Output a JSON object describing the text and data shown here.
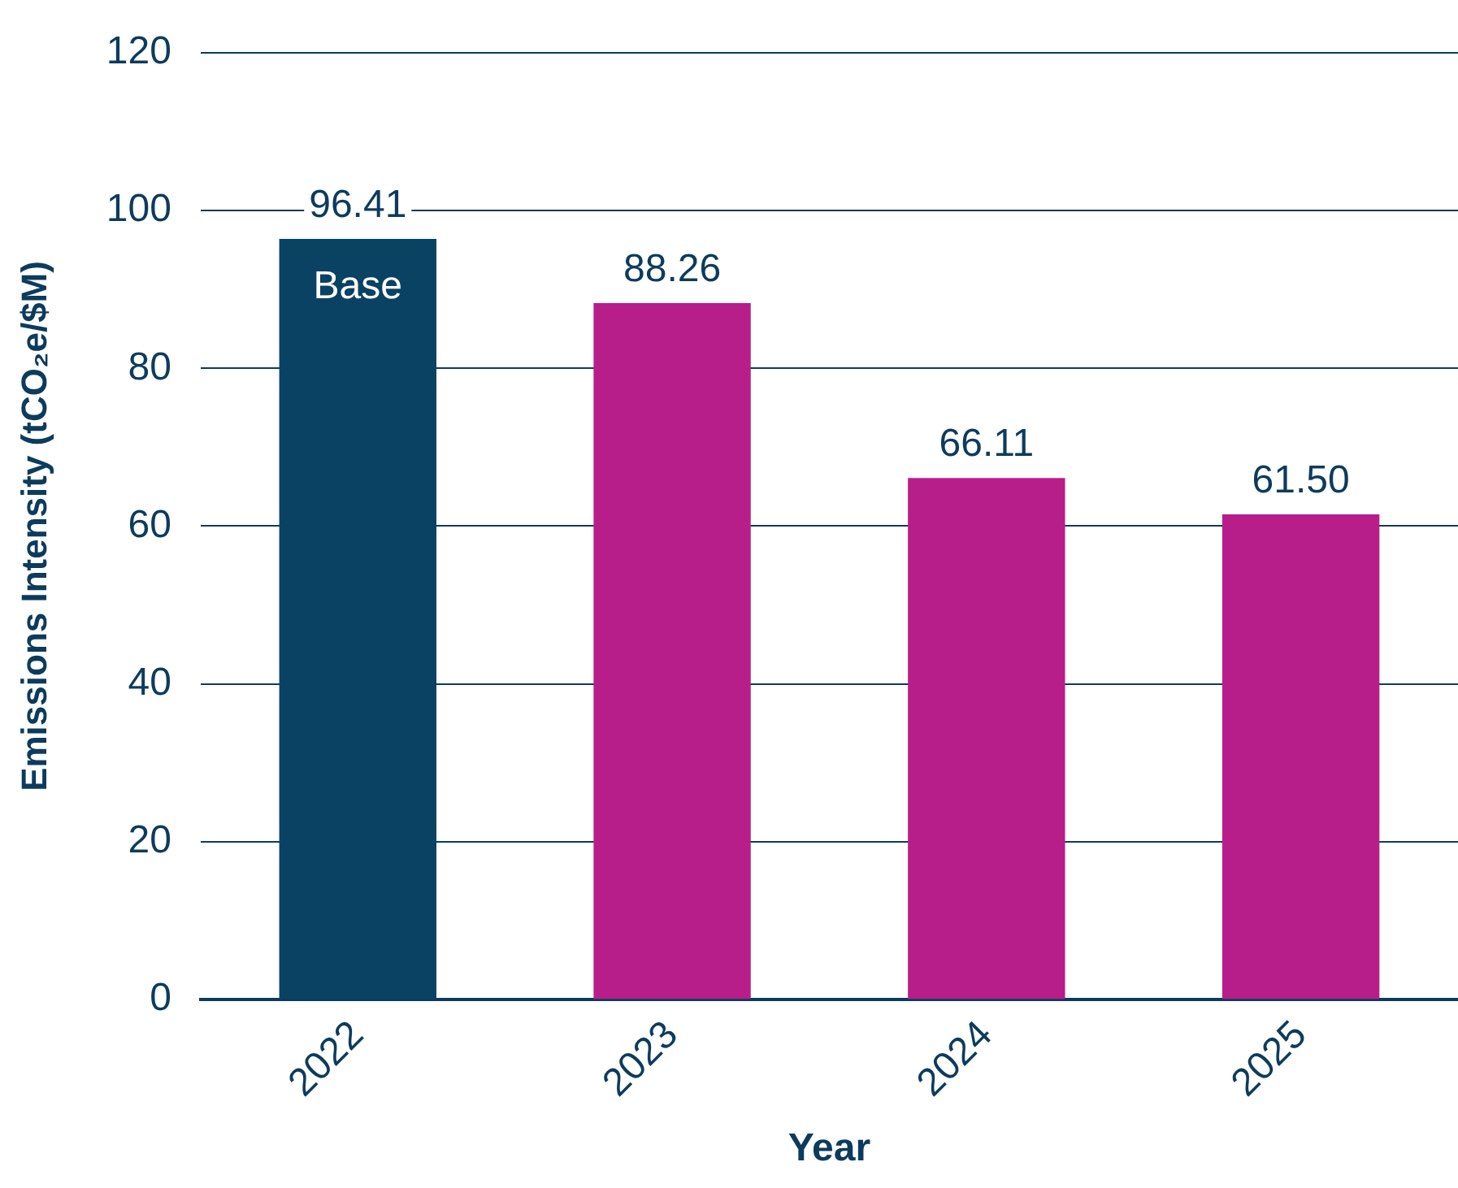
{
  "chart_data": {
    "type": "bar",
    "xlabel": "Year",
    "ylabel": "Emissions Intensity (tCO₂e/$M)",
    "categories": [
      "2022",
      "2023",
      "2024",
      "2025"
    ],
    "values": [
      96.41,
      88.26,
      66.11,
      61.5
    ],
    "value_labels": [
      "96.41",
      "88.26",
      "66.11",
      "61.50"
    ],
    "colors": [
      "#0a4263",
      "#b81e8a",
      "#b81e8a",
      "#b81e8a"
    ],
    "ylim": [
      0,
      120
    ],
    "yticks": [
      0,
      20,
      40,
      60,
      80,
      100,
      120
    ],
    "grid": "y",
    "annotations": [
      "Base"
    ]
  }
}
